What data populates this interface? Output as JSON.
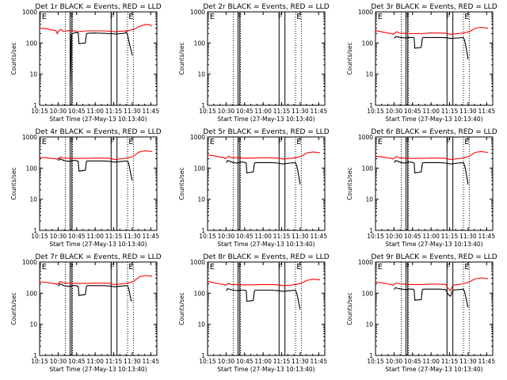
{
  "chart_data": [
    {
      "type": "line",
      "title": "Det 1r BLACK = Events, RED = LLD",
      "xlabel": "Start Time (27-May-13 10:13:40)",
      "ylabel": "Counts/sec",
      "xticks": [
        "10:15",
        "10:30",
        "10:45",
        "11:00",
        "11:15",
        "11:30",
        "11:45"
      ],
      "yticks": [
        "1",
        "10",
        "100",
        "1000"
      ],
      "ylim": [
        1,
        1000
      ],
      "yscale": "log",
      "markers": [
        "E",
        "F",
        "F",
        "E"
      ],
      "series": [
        {
          "name": "Events",
          "color": "#000000",
          "x": [
            26,
            27,
            30,
            31,
            32,
            33,
            33.5,
            39,
            40,
            41,
            46,
            55,
            60,
            62,
            64,
            66,
            68,
            70,
            73,
            74,
            75,
            76,
            77,
            78,
            78.5,
            79
          ],
          "y": [
            4,
            190,
            215,
            215,
            215,
            210,
            95,
            100,
            200,
            205,
            210,
            205,
            200,
            200,
            195,
            195,
            200,
            200,
            210,
            230,
            180,
            120,
            80,
            60,
            50,
            40
          ]
        },
        {
          "name": "LLD",
          "color": "#ff0000",
          "x": [
            0,
            5,
            10,
            14,
            15,
            16,
            18,
            20,
            26,
            30,
            32,
            40,
            46,
            55,
            60,
            64,
            70,
            75,
            80,
            85,
            90,
            93,
            96
          ],
          "y": [
            300,
            290,
            265,
            250,
            200,
            240,
            275,
            240,
            250,
            245,
            230,
            245,
            245,
            245,
            240,
            230,
            240,
            250,
            270,
            340,
            390,
            390,
            360
          ]
        }
      ]
    },
    {
      "type": "line",
      "title": "Det 2r BLACK = Events, RED = LLD",
      "xlabel": "Start Time (27-May-13 10:13:40)",
      "ylabel": "Counts/sec",
      "xticks": [
        "10:15",
        "10:30",
        "10:45",
        "11:00",
        "11:15",
        "11:30",
        "11:45"
      ],
      "yticks": [
        "1",
        "10",
        "100",
        "1000"
      ],
      "ylim": [
        1,
        1000
      ],
      "yscale": "log",
      "markers": [
        "E",
        "F",
        "F",
        "E"
      ],
      "series": []
    },
    {
      "type": "line",
      "title": "Det 3r BLACK = Events, RED = LLD",
      "xlabel": "Start Time (27-May-13 10:13:40)",
      "ylabel": "Counts/sec",
      "xticks": [
        "10:15",
        "10:30",
        "10:45",
        "11:00",
        "11:15",
        "11:30",
        "11:45"
      ],
      "yticks": [
        "1",
        "10",
        "100",
        "1000"
      ],
      "ylim": [
        1,
        1000
      ],
      "yscale": "log",
      "markers": [
        "E",
        "F",
        "F",
        "E"
      ],
      "series": [
        {
          "name": "Events",
          "color": "#000000",
          "x": [
            16,
            17,
            20,
            22,
            26,
            28,
            30,
            31,
            32,
            33,
            33.5,
            39,
            40,
            41,
            46,
            55,
            60,
            64,
            70,
            75,
            76,
            77,
            78,
            79
          ],
          "y": [
            140,
            160,
            155,
            150,
            145,
            150,
            150,
            150,
            150,
            145,
            68,
            72,
            145,
            150,
            150,
            150,
            148,
            140,
            145,
            150,
            120,
            80,
            50,
            30
          ]
        },
        {
          "name": "LLD",
          "color": "#ff0000",
          "x": [
            0,
            5,
            10,
            14,
            15,
            16,
            18,
            20,
            30,
            40,
            46,
            55,
            60,
            64,
            70,
            75,
            80,
            85,
            90,
            96
          ],
          "y": [
            250,
            230,
            210,
            200,
            190,
            200,
            230,
            210,
            200,
            200,
            210,
            210,
            205,
            190,
            200,
            210,
            230,
            300,
            320,
            300
          ]
        }
      ]
    },
    {
      "type": "line",
      "title": "Det 4r BLACK = Events, RED = LLD",
      "xlabel": "Start Time (27-May-13 10:13:40)",
      "ylabel": "Counts/sec",
      "xticks": [
        "10:15",
        "10:30",
        "10:45",
        "11:00",
        "11:15",
        "11:30",
        "11:45"
      ],
      "yticks": [
        "1",
        "10",
        "100",
        "1000"
      ],
      "ylim": [
        1,
        1000
      ],
      "yscale": "log",
      "markers": [
        "E",
        "F",
        "F",
        "E"
      ],
      "series": [
        {
          "name": "Events",
          "color": "#000000",
          "x": [
            16,
            17,
            20,
            22,
            26,
            28,
            30,
            31,
            32,
            33,
            33.5,
            39,
            40,
            41,
            46,
            55,
            60,
            64,
            70,
            75,
            76,
            77,
            78,
            79
          ],
          "y": [
            170,
            200,
            180,
            170,
            165,
            175,
            175,
            175,
            170,
            165,
            80,
            85,
            165,
            170,
            170,
            170,
            165,
            155,
            165,
            170,
            140,
            90,
            60,
            40
          ]
        },
        {
          "name": "LLD",
          "color": "#ff0000",
          "x": [
            0,
            5,
            10,
            14,
            15,
            16,
            18,
            20,
            30,
            40,
            46,
            55,
            60,
            64,
            70,
            75,
            80,
            85,
            90,
            96
          ],
          "y": [
            220,
            215,
            205,
            200,
            190,
            205,
            230,
            210,
            205,
            205,
            210,
            210,
            205,
            190,
            200,
            210,
            240,
            330,
            360,
            340
          ]
        }
      ]
    },
    {
      "type": "line",
      "title": "Det 5r BLACK = Events, RED = LLD",
      "xlabel": "Start Time (27-May-13 10:13:40)",
      "ylabel": "Counts/sec",
      "xticks": [
        "10:15",
        "10:30",
        "10:45",
        "11:00",
        "11:15",
        "11:30",
        "11:45"
      ],
      "yticks": [
        "1",
        "10",
        "100",
        "1000"
      ],
      "ylim": [
        1,
        1000
      ],
      "yscale": "log",
      "markers": [
        "E",
        "F",
        "F",
        "E"
      ],
      "series": [
        {
          "name": "Events",
          "color": "#000000",
          "x": [
            16,
            17,
            20,
            22,
            26,
            28,
            30,
            31,
            32,
            33,
            33.5,
            39,
            40,
            41,
            46,
            55,
            60,
            64,
            70,
            75,
            76,
            77,
            78,
            79
          ],
          "y": [
            150,
            175,
            160,
            150,
            145,
            155,
            155,
            155,
            150,
            145,
            70,
            75,
            145,
            150,
            150,
            150,
            145,
            135,
            145,
            150,
            120,
            80,
            50,
            30
          ]
        },
        {
          "name": "LLD",
          "color": "#ff0000",
          "x": [
            0,
            5,
            10,
            14,
            15,
            16,
            18,
            20,
            30,
            40,
            46,
            55,
            60,
            64,
            70,
            75,
            80,
            85,
            90,
            96
          ],
          "y": [
            260,
            250,
            230,
            215,
            200,
            215,
            240,
            220,
            210,
            210,
            215,
            215,
            210,
            195,
            205,
            215,
            240,
            310,
            330,
            310
          ]
        }
      ]
    },
    {
      "type": "line",
      "title": "Det 6r BLACK = Events, RED = LLD",
      "xlabel": "Start Time (27-May-13 10:13:40)",
      "ylabel": "Counts/sec",
      "xticks": [
        "10:15",
        "10:30",
        "10:45",
        "11:00",
        "11:15",
        "11:30",
        "11:45"
      ],
      "yticks": [
        "1",
        "10",
        "100",
        "1000"
      ],
      "ylim": [
        1,
        1000
      ],
      "yscale": "log",
      "markers": [
        "E",
        "F",
        "F",
        "E"
      ],
      "series": [
        {
          "name": "Events",
          "color": "#000000",
          "x": [
            16,
            17,
            20,
            22,
            26,
            28,
            30,
            31,
            32,
            33,
            33.5,
            39,
            40,
            41,
            46,
            55,
            60,
            64,
            70,
            75,
            76,
            77,
            78,
            79
          ],
          "y": [
            150,
            175,
            160,
            150,
            145,
            155,
            155,
            155,
            150,
            145,
            70,
            75,
            145,
            150,
            150,
            150,
            145,
            135,
            145,
            150,
            120,
            80,
            50,
            30
          ]
        },
        {
          "name": "LLD",
          "color": "#ff0000",
          "x": [
            0,
            5,
            10,
            14,
            15,
            16,
            18,
            20,
            30,
            40,
            46,
            55,
            60,
            64,
            70,
            75,
            80,
            85,
            90,
            96
          ],
          "y": [
            240,
            230,
            215,
            205,
            195,
            210,
            235,
            215,
            205,
            205,
            210,
            210,
            205,
            190,
            200,
            210,
            240,
            320,
            340,
            320
          ]
        }
      ]
    },
    {
      "type": "line",
      "title": "Det 7r BLACK = Events, RED = LLD",
      "xlabel": "Start Time (27-May-13 10:13:40)",
      "ylabel": "Counts/sec",
      "xticks": [
        "10:15",
        "10:30",
        "10:45",
        "11:00",
        "11:15",
        "11:30",
        "11:45"
      ],
      "yticks": [
        "1",
        "10",
        "100",
        "1000"
      ],
      "ylim": [
        1,
        1000
      ],
      "yscale": "log",
      "markers": [
        "E",
        "F",
        "F",
        "E"
      ],
      "series": [
        {
          "name": "Events",
          "color": "#000000",
          "x": [
            16,
            17,
            20,
            22,
            26,
            28,
            30,
            31,
            32,
            33,
            33.5,
            39,
            40,
            41,
            46,
            55,
            60,
            64,
            70,
            75,
            76,
            77,
            78,
            79
          ],
          "y": [
            165,
            200,
            180,
            170,
            165,
            175,
            175,
            175,
            170,
            165,
            85,
            90,
            170,
            175,
            175,
            175,
            170,
            160,
            170,
            175,
            140,
            90,
            60,
            55
          ]
        },
        {
          "name": "LLD",
          "color": "#ff0000",
          "x": [
            0,
            5,
            10,
            14,
            15,
            16,
            18,
            20,
            30,
            40,
            46,
            55,
            60,
            64,
            70,
            75,
            80,
            85,
            90,
            96
          ],
          "y": [
            230,
            225,
            210,
            200,
            190,
            210,
            235,
            215,
            205,
            205,
            210,
            210,
            205,
            190,
            200,
            210,
            240,
            330,
            370,
            350
          ]
        }
      ]
    },
    {
      "type": "line",
      "title": "Det 8r BLACK = Events, RED = LLD",
      "xlabel": "Start Time (27-May-13 10:13:40)",
      "ylabel": "Counts/sec",
      "xticks": [
        "10:15",
        "10:30",
        "10:45",
        "11:00",
        "11:15",
        "11:30",
        "11:45"
      ],
      "yticks": [
        "1",
        "10",
        "100",
        "1000"
      ],
      "ylim": [
        1,
        1000
      ],
      "yscale": "log",
      "markers": [
        "E",
        "F",
        "F",
        "E"
      ],
      "series": [
        {
          "name": "Events",
          "color": "#000000",
          "x": [
            16,
            17,
            20,
            22,
            26,
            28,
            30,
            31,
            32,
            33,
            33.5,
            39,
            40,
            41,
            46,
            55,
            60,
            64,
            70,
            75,
            76,
            77,
            78,
            79
          ],
          "y": [
            120,
            140,
            130,
            125,
            120,
            125,
            125,
            125,
            125,
            120,
            55,
            58,
            120,
            125,
            125,
            125,
            120,
            115,
            120,
            125,
            100,
            70,
            45,
            30
          ]
        },
        {
          "name": "LLD",
          "color": "#ff0000",
          "x": [
            0,
            5,
            10,
            14,
            15,
            16,
            18,
            20,
            30,
            40,
            46,
            55,
            60,
            64,
            70,
            75,
            80,
            85,
            90,
            96
          ],
          "y": [
            240,
            220,
            200,
            190,
            180,
            190,
            210,
            190,
            185,
            185,
            190,
            190,
            185,
            175,
            180,
            190,
            210,
            260,
            280,
            270
          ]
        }
      ]
    },
    {
      "type": "line",
      "title": "Det 9r BLACK = Events, RED = LLD",
      "xlabel": "Start Time (27-May-13 10:13:40)",
      "ylabel": "Counts/sec",
      "xticks": [
        "10:15",
        "10:30",
        "10:45",
        "11:00",
        "11:15",
        "11:30",
        "11:45"
      ],
      "yticks": [
        "1",
        "10",
        "100",
        "1000"
      ],
      "ylim": [
        1,
        1000
      ],
      "yscale": "log",
      "markers": [
        "E",
        "F",
        "F",
        "E"
      ],
      "series": [
        {
          "name": "Events",
          "color": "#000000",
          "x": [
            16,
            17,
            20,
            22,
            26,
            28,
            30,
            31,
            32,
            33,
            33.5,
            39,
            40,
            41,
            46,
            55,
            60,
            62,
            64,
            66,
            70,
            75,
            76,
            77,
            78,
            79
          ],
          "y": [
            130,
            150,
            140,
            135,
            130,
            135,
            135,
            135,
            135,
            130,
            60,
            62,
            130,
            135,
            135,
            135,
            130,
            90,
            80,
            125,
            130,
            135,
            110,
            75,
            50,
            35
          ]
        },
        {
          "name": "LLD",
          "color": "#ff0000",
          "x": [
            0,
            5,
            10,
            14,
            15,
            16,
            18,
            20,
            30,
            40,
            46,
            55,
            60,
            62,
            64,
            66,
            70,
            75,
            80,
            85,
            90,
            96
          ],
          "y": [
            230,
            215,
            200,
            190,
            180,
            195,
            215,
            200,
            190,
            190,
            195,
            195,
            190,
            140,
            120,
            180,
            190,
            200,
            230,
            290,
            310,
            290
          ]
        }
      ]
    }
  ]
}
